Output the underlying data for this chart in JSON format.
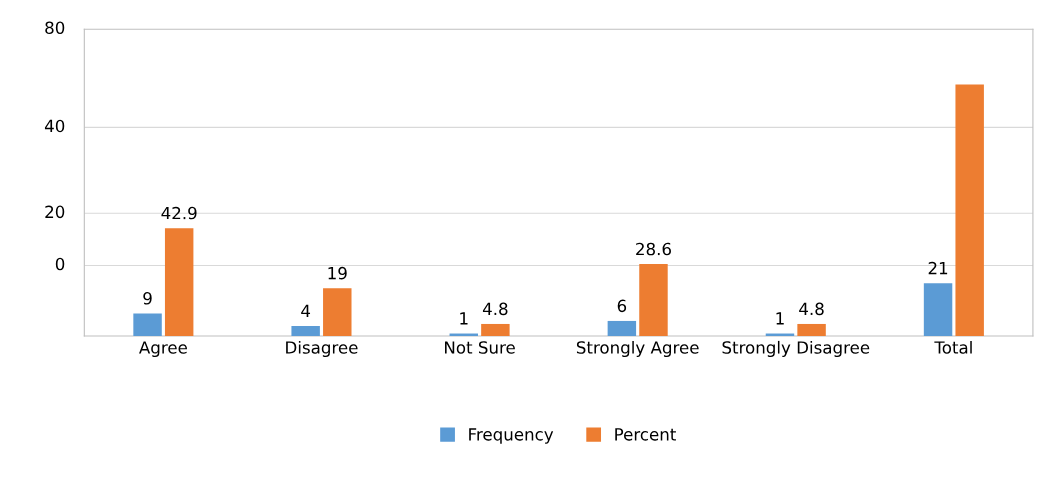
{
  "chart_data": {
    "type": "bar",
    "ylim": [
      0,
      122
    ],
    "categories": [
      "Agree",
      "Disagree",
      "Not Sure",
      "Strongly Agree",
      "Strongly Disagree",
      "Total"
    ],
    "series": [
      {
        "name": "Frequency",
        "color": "#5b9bd5",
        "values": [
          9,
          4,
          1,
          6,
          1,
          21
        ],
        "value_labels": [
          "9",
          "4",
          "1",
          "6",
          "1",
          "21"
        ]
      },
      {
        "name": "Percent",
        "color": "#ed7d31",
        "values": [
          42.9,
          19,
          4.8,
          28.6,
          4.8,
          100
        ],
        "value_labels": [
          "42.9",
          "19",
          "4.8",
          "28.6",
          "4.8",
          null
        ]
      }
    ],
    "annotations": [
      "80",
      "40",
      "20",
      "0"
    ],
    "grid": "y",
    "legend": "bottom"
  }
}
